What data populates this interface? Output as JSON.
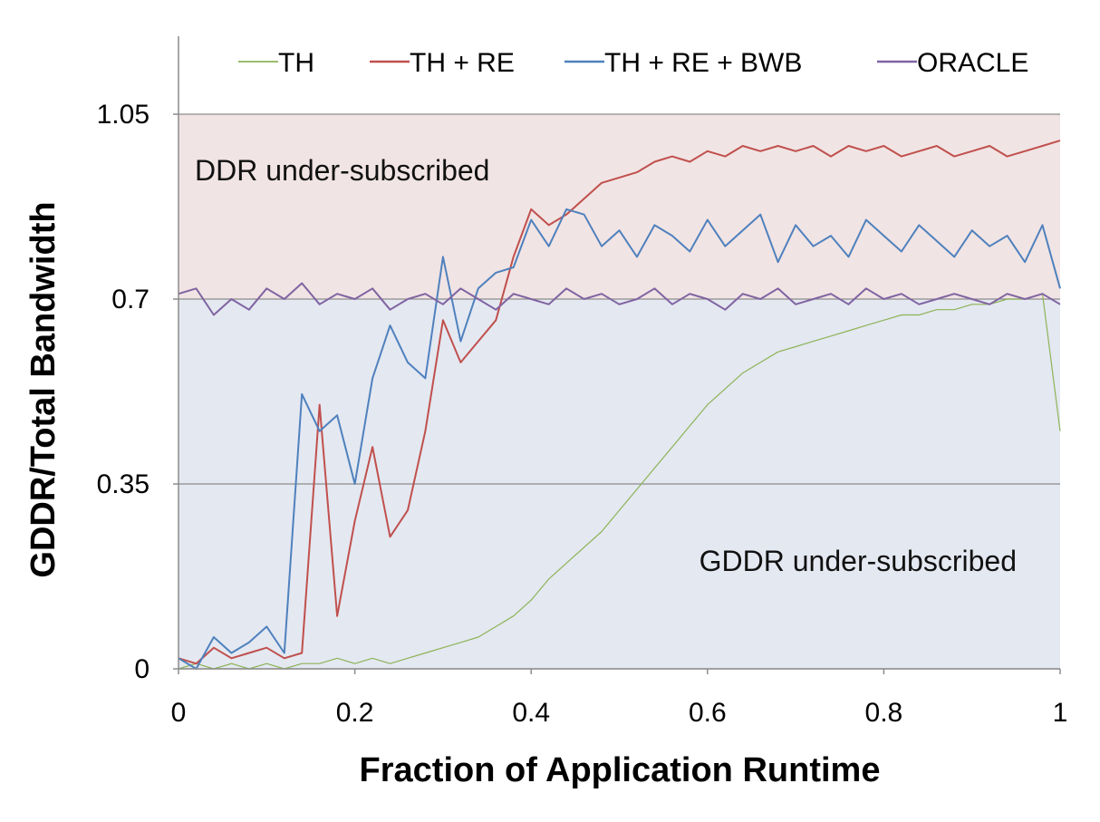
{
  "chart_data": {
    "type": "line",
    "title": "",
    "xlabel": "Fraction of Application Runtime",
    "ylabel": "GDDR/Total Bandwidth",
    "xlim": [
      0,
      1
    ],
    "ylim": [
      0,
      1.05
    ],
    "x_ticks": [
      "0",
      "0.2",
      "0.4",
      "0.6",
      "0.8",
      "1"
    ],
    "y_ticks": [
      "0",
      "0.35",
      "0.7",
      "1.05"
    ],
    "grid": "horizontal",
    "legend_position": "top",
    "regions": [
      {
        "label": "DDR under-subscribed",
        "from": 0.7,
        "to": 1.05,
        "color": "#f1e4e4"
      },
      {
        "label": "GDDR under-subscribed",
        "from": 0,
        "to": 0.7,
        "color": "#e4e8f1"
      }
    ],
    "x": [
      0,
      0.02,
      0.04,
      0.06,
      0.08,
      0.1,
      0.12,
      0.14,
      0.16,
      0.18,
      0.2,
      0.22,
      0.24,
      0.26,
      0.28,
      0.3,
      0.32,
      0.34,
      0.36,
      0.38,
      0.4,
      0.42,
      0.44,
      0.46,
      0.48,
      0.5,
      0.52,
      0.54,
      0.56,
      0.58,
      0.6,
      0.62,
      0.64,
      0.66,
      0.68,
      0.7,
      0.72,
      0.74,
      0.76,
      0.78,
      0.8,
      0.82,
      0.84,
      0.86,
      0.88,
      0.9,
      0.92,
      0.94,
      0.96,
      0.98,
      1
    ],
    "series": [
      {
        "name": "TH",
        "color": "#8db356",
        "width": 1.2,
        "values": [
          0.0,
          0.01,
          0.0,
          0.01,
          0.0,
          0.01,
          0.0,
          0.01,
          0.01,
          0.02,
          0.01,
          0.02,
          0.01,
          0.02,
          0.03,
          0.04,
          0.05,
          0.06,
          0.08,
          0.1,
          0.13,
          0.17,
          0.2,
          0.23,
          0.26,
          0.3,
          0.34,
          0.38,
          0.42,
          0.46,
          0.5,
          0.53,
          0.56,
          0.58,
          0.6,
          0.61,
          0.62,
          0.63,
          0.64,
          0.65,
          0.66,
          0.67,
          0.67,
          0.68,
          0.68,
          0.69,
          0.69,
          0.7,
          0.7,
          0.71,
          0.45
        ]
      },
      {
        "name": "TH + RE",
        "color": "#c0504d",
        "width": 2,
        "values": [
          0.02,
          0.01,
          0.04,
          0.02,
          0.03,
          0.04,
          0.02,
          0.03,
          0.5,
          0.1,
          0.28,
          0.42,
          0.25,
          0.3,
          0.45,
          0.66,
          0.58,
          0.62,
          0.66,
          0.78,
          0.87,
          0.84,
          0.86,
          0.89,
          0.92,
          0.93,
          0.94,
          0.96,
          0.97,
          0.96,
          0.98,
          0.97,
          0.99,
          0.98,
          0.99,
          0.98,
          0.99,
          0.97,
          0.99,
          0.98,
          0.99,
          0.97,
          0.98,
          0.99,
          0.97,
          0.98,
          0.99,
          0.97,
          0.98,
          0.99,
          1.0
        ]
      },
      {
        "name": "TH + RE + BWB",
        "color": "#4f81bd",
        "width": 2,
        "values": [
          0.02,
          0.0,
          0.06,
          0.03,
          0.05,
          0.08,
          0.03,
          0.52,
          0.45,
          0.48,
          0.35,
          0.55,
          0.65,
          0.58,
          0.55,
          0.78,
          0.62,
          0.72,
          0.75,
          0.76,
          0.85,
          0.8,
          0.87,
          0.86,
          0.8,
          0.83,
          0.78,
          0.84,
          0.82,
          0.79,
          0.85,
          0.8,
          0.83,
          0.86,
          0.77,
          0.84,
          0.8,
          0.82,
          0.78,
          0.85,
          0.82,
          0.79,
          0.84,
          0.81,
          0.78,
          0.83,
          0.8,
          0.82,
          0.77,
          0.84,
          0.72
        ]
      },
      {
        "name": "ORACLE",
        "color": "#8064a2",
        "width": 2,
        "values": [
          0.71,
          0.72,
          0.67,
          0.7,
          0.68,
          0.72,
          0.7,
          0.73,
          0.69,
          0.71,
          0.7,
          0.72,
          0.68,
          0.7,
          0.71,
          0.69,
          0.72,
          0.7,
          0.68,
          0.71,
          0.7,
          0.69,
          0.72,
          0.7,
          0.71,
          0.69,
          0.7,
          0.72,
          0.69,
          0.71,
          0.7,
          0.68,
          0.71,
          0.7,
          0.72,
          0.69,
          0.7,
          0.71,
          0.69,
          0.72,
          0.7,
          0.71,
          0.69,
          0.7,
          0.71,
          0.7,
          0.69,
          0.71,
          0.7,
          0.71,
          0.69
        ]
      }
    ]
  }
}
